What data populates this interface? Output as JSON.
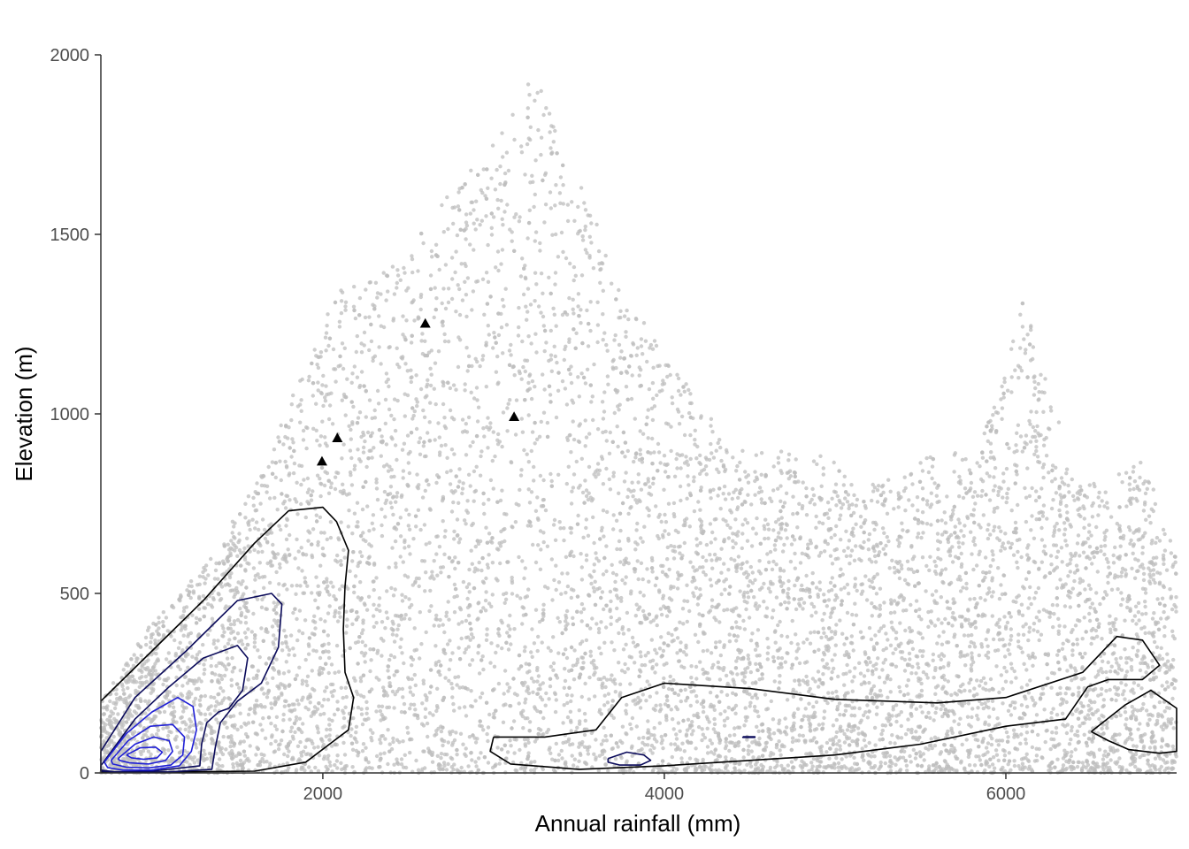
{
  "chart_data": {
    "type": "scatter",
    "title": "",
    "xlabel": "Annual rainfall (mm)",
    "ylabel": "Elevation (m)",
    "xlim": [
      700,
      7000
    ],
    "ylim": [
      0,
      2000
    ],
    "x_ticks": [
      2000,
      4000,
      6000
    ],
    "y_ticks": [
      0,
      500,
      1000,
      1500,
      2000
    ],
    "grid": false,
    "legend": "none",
    "colors": {
      "points": "#bebebe",
      "outer_contour": "#000000",
      "mid_contour": "#0a0a5a",
      "inner_contour": "#1f1fd6",
      "markers": "#000000",
      "axis": "#333333"
    },
    "background_points": {
      "description_envelope": [
        [
          700,
          200
        ],
        [
          1000,
          420
        ],
        [
          1300,
          580
        ],
        [
          1600,
          800
        ],
        [
          1850,
          1080
        ],
        [
          2100,
          1360
        ],
        [
          2300,
          1380
        ],
        [
          2500,
          1450
        ],
        [
          2750,
          1620
        ],
        [
          3000,
          1750
        ],
        [
          3200,
          1920
        ],
        [
          3300,
          1950
        ],
        [
          3400,
          1750
        ],
        [
          3600,
          1550
        ],
        [
          3750,
          1320
        ],
        [
          3900,
          1250
        ],
        [
          4000,
          1150
        ],
        [
          4200,
          1050
        ],
        [
          4400,
          900
        ],
        [
          4700,
          900
        ],
        [
          4950,
          880
        ],
        [
          5150,
          810
        ],
        [
          5400,
          820
        ],
        [
          5600,
          920
        ],
        [
          5800,
          870
        ],
        [
          5950,
          1050
        ],
        [
          6100,
          1320
        ],
        [
          6250,
          1100
        ],
        [
          6400,
          800
        ],
        [
          6600,
          820
        ],
        [
          6800,
          880
        ],
        [
          7000,
          600
        ]
      ],
      "count": 9000
    },
    "triangle_markers": [
      {
        "x": 1995,
        "y": 868
      },
      {
        "x": 2085,
        "y": 933
      },
      {
        "x": 2600,
        "y": 1252
      },
      {
        "x": 3120,
        "y": 992
      }
    ],
    "density_contours": [
      {
        "level": "outer",
        "color": "#000000",
        "points": [
          [
            700,
            200
          ],
          [
            1000,
            340
          ],
          [
            1300,
            480
          ],
          [
            1600,
            640
          ],
          [
            1800,
            730
          ],
          [
            2000,
            740
          ],
          [
            2080,
            700
          ],
          [
            2150,
            620
          ],
          [
            2130,
            520
          ],
          [
            2120,
            400
          ],
          [
            2130,
            280
          ],
          [
            2180,
            210
          ],
          [
            2150,
            120
          ],
          [
            1900,
            30
          ],
          [
            1600,
            5
          ],
          [
            1000,
            2
          ],
          [
            700,
            2
          ]
        ]
      },
      {
        "level": "outer-east",
        "color": "#000000",
        "points": [
          [
            3000,
            100
          ],
          [
            3300,
            100
          ],
          [
            3600,
            120
          ],
          [
            3750,
            210
          ],
          [
            4000,
            250
          ],
          [
            4500,
            235
          ],
          [
            5000,
            205
          ],
          [
            5600,
            195
          ],
          [
            6000,
            210
          ],
          [
            6450,
            280
          ],
          [
            6650,
            380
          ],
          [
            6800,
            370
          ],
          [
            6900,
            300
          ],
          [
            6800,
            260
          ],
          [
            6600,
            260
          ],
          [
            6480,
            240
          ],
          [
            6350,
            150
          ],
          [
            6000,
            130
          ],
          [
            5500,
            80
          ],
          [
            5000,
            50
          ],
          [
            4500,
            35
          ],
          [
            4000,
            20
          ],
          [
            3500,
            10
          ],
          [
            3100,
            25
          ],
          [
            2980,
            60
          ],
          [
            3000,
            100
          ]
        ]
      },
      {
        "level": "outer-ne",
        "color": "#000000",
        "points": [
          [
            6500,
            115
          ],
          [
            6700,
            190
          ],
          [
            6850,
            230
          ],
          [
            7000,
            180
          ],
          [
            7000,
            60
          ],
          [
            6900,
            55
          ],
          [
            6720,
            65
          ],
          [
            6600,
            90
          ],
          [
            6500,
            115
          ]
        ]
      },
      {
        "level": "mid-1",
        "color": "#0a0a5a",
        "points": [
          [
            700,
            60
          ],
          [
            900,
            210
          ],
          [
            1200,
            340
          ],
          [
            1500,
            480
          ],
          [
            1700,
            500
          ],
          [
            1760,
            470
          ],
          [
            1740,
            350
          ],
          [
            1640,
            250
          ],
          [
            1500,
            200
          ],
          [
            1400,
            140
          ],
          [
            1370,
            70
          ],
          [
            1350,
            10
          ],
          [
            1100,
            3
          ],
          [
            800,
            2
          ],
          [
            700,
            5
          ],
          [
            700,
            60
          ]
        ]
      },
      {
        "level": "mid-2",
        "color": "#0a0a5a",
        "points": [
          [
            700,
            20
          ],
          [
            900,
            150
          ],
          [
            1100,
            240
          ],
          [
            1300,
            320
          ],
          [
            1500,
            355
          ],
          [
            1560,
            320
          ],
          [
            1530,
            230
          ],
          [
            1450,
            180
          ],
          [
            1390,
            170
          ],
          [
            1320,
            140
          ],
          [
            1290,
            80
          ],
          [
            1280,
            20
          ],
          [
            1000,
            5
          ],
          [
            780,
            3
          ],
          [
            700,
            8
          ],
          [
            700,
            20
          ]
        ]
      },
      {
        "level": "mid-3",
        "color": "#1f1fd6",
        "points": [
          [
            720,
            30
          ],
          [
            850,
            110
          ],
          [
            1000,
            170
          ],
          [
            1150,
            210
          ],
          [
            1240,
            185
          ],
          [
            1260,
            120
          ],
          [
            1230,
            60
          ],
          [
            1160,
            20
          ],
          [
            1000,
            8
          ],
          [
            830,
            8
          ],
          [
            740,
            15
          ],
          [
            720,
            30
          ]
        ]
      },
      {
        "level": "inner-1",
        "color": "#1f1fd6",
        "points": [
          [
            760,
            35
          ],
          [
            860,
            90
          ],
          [
            990,
            130
          ],
          [
            1120,
            135
          ],
          [
            1190,
            100
          ],
          [
            1180,
            50
          ],
          [
            1110,
            22
          ],
          [
            980,
            14
          ],
          [
            850,
            16
          ],
          [
            770,
            25
          ],
          [
            760,
            35
          ]
        ]
      },
      {
        "level": "inner-2",
        "color": "#1f1fd6",
        "points": [
          [
            800,
            40
          ],
          [
            900,
            80
          ],
          [
            1010,
            100
          ],
          [
            1100,
            90
          ],
          [
            1120,
            60
          ],
          [
            1080,
            35
          ],
          [
            980,
            25
          ],
          [
            870,
            28
          ],
          [
            810,
            35
          ],
          [
            800,
            40
          ]
        ]
      },
      {
        "level": "inner-3",
        "color": "#1f1fd6",
        "points": [
          [
            850,
            50
          ],
          [
            930,
            70
          ],
          [
            1020,
            72
          ],
          [
            1060,
            58
          ],
          [
            1030,
            42
          ],
          [
            950,
            38
          ],
          [
            880,
            42
          ],
          [
            850,
            50
          ]
        ]
      },
      {
        "level": "small-east",
        "color": "#0a0a5a",
        "points": [
          [
            3670,
            40
          ],
          [
            3780,
            58
          ],
          [
            3880,
            50
          ],
          [
            3920,
            35
          ],
          [
            3860,
            22
          ],
          [
            3740,
            22
          ],
          [
            3670,
            30
          ],
          [
            3670,
            40
          ]
        ]
      },
      {
        "level": "tiny-east",
        "color": "#0a0a5a",
        "points": [
          [
            4460,
            101
          ],
          [
            4530,
            101
          ],
          [
            4530,
            99
          ],
          [
            4460,
            99
          ],
          [
            4460,
            101
          ]
        ]
      }
    ]
  }
}
